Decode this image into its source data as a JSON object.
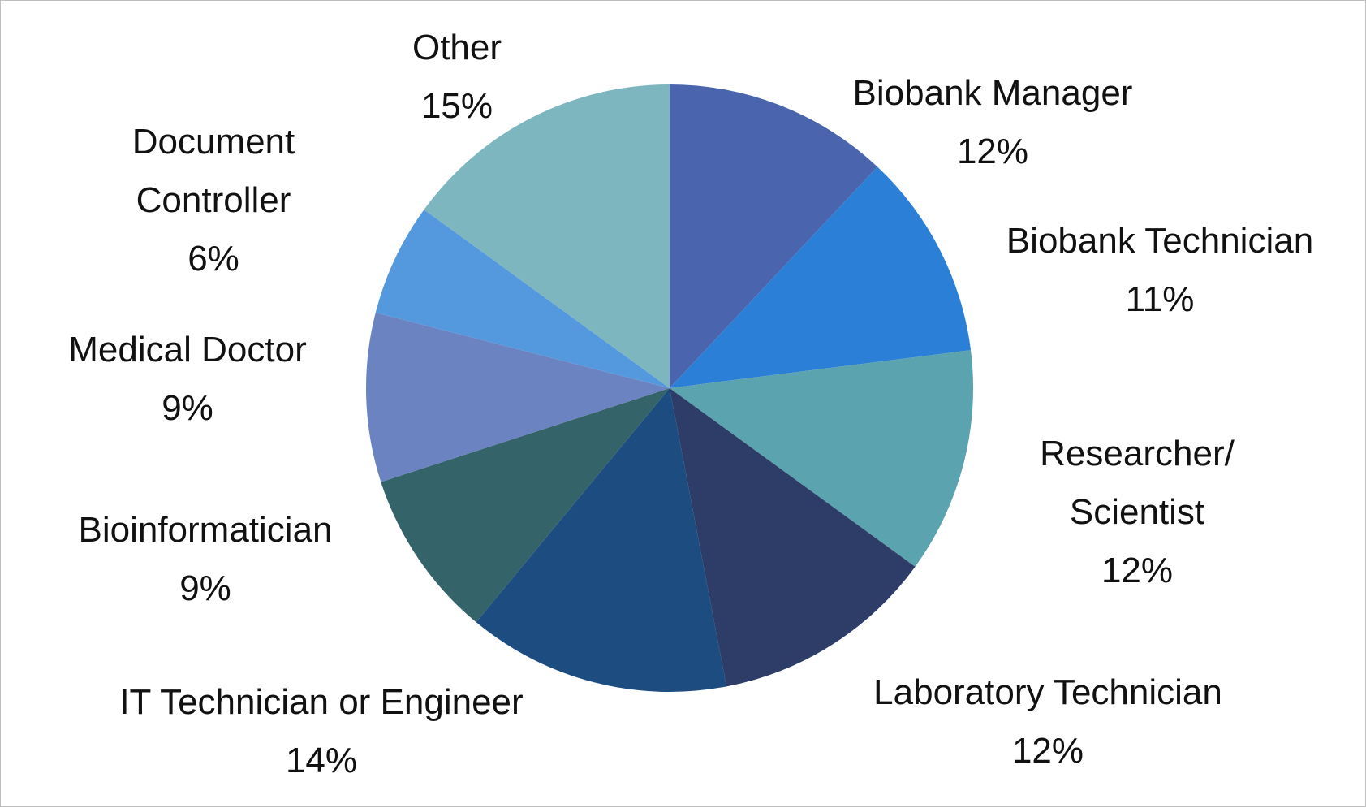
{
  "chart_data": {
    "type": "pie",
    "title": "",
    "start_angle_deg": 0,
    "direction": "clockwise",
    "slices": [
      {
        "label": "Biobank Manager",
        "lines": [
          "Biobank Manager"
        ],
        "value": 12,
        "value_label": "12%",
        "color": "#4a65ad"
      },
      {
        "label": "Biobank Technician",
        "lines": [
          "Biobank Technician"
        ],
        "value": 11,
        "value_label": "11%",
        "color": "#2b7fd6"
      },
      {
        "label": "Researcher/ Scientist",
        "lines": [
          "Researcher/",
          "Scientist"
        ],
        "value": 12,
        "value_label": "12%",
        "color": "#5ba3ae"
      },
      {
        "label": "Laboratory Technician",
        "lines": [
          "Laboratory Technician"
        ],
        "value": 12,
        "value_label": "12%",
        "color": "#2e3d68"
      },
      {
        "label": "IT Technician or Engineer",
        "lines": [
          "IT Technician or Engineer"
        ],
        "value": 14,
        "value_label": "14%",
        "color": "#1c4c80"
      },
      {
        "label": "Bioinformatician",
        "lines": [
          "Bioinformatician"
        ],
        "value": 9,
        "value_label": "9%",
        "color": "#35636a"
      },
      {
        "label": "Medical Doctor",
        "lines": [
          "Medical Doctor"
        ],
        "value": 9,
        "value_label": "9%",
        "color": "#6c83c1"
      },
      {
        "label": "Document Controller",
        "lines": [
          "Document",
          "Controller"
        ],
        "value": 6,
        "value_label": "6%",
        "color": "#5499de"
      },
      {
        "label": "Other",
        "lines": [
          "Other"
        ],
        "value": 15,
        "value_label": "15%",
        "color": "#7eb6bf"
      }
    ]
  }
}
